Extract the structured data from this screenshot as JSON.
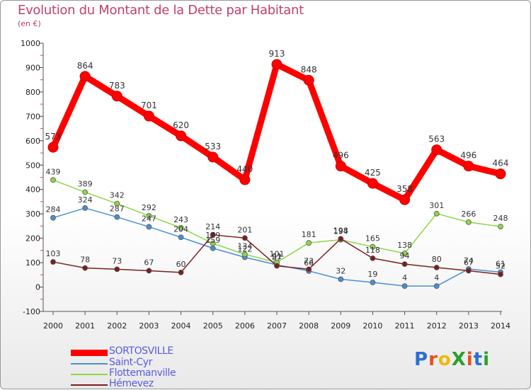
{
  "title": "Evolution du Montant de la Dette par Habitant",
  "subtitle": "(en €)",
  "logo": {
    "text": "ProXiti",
    "colors": [
      "#2a6fd6",
      "#e8501a",
      "#f0b800",
      "#2aa02a",
      "#e8501a",
      "#2a6fd6",
      "#2aa02a"
    ]
  },
  "chart_data": {
    "type": "line",
    "categories": [
      "2000",
      "2001",
      "2002",
      "2003",
      "2004",
      "2005",
      "2006",
      "2007",
      "2008",
      "2009",
      "2010",
      "2011",
      "2012",
      "2013",
      "2014"
    ],
    "ylim": [
      -100,
      1000
    ],
    "yticks": [
      -100,
      0,
      100,
      200,
      300,
      400,
      500,
      600,
      700,
      800,
      900,
      1000
    ],
    "grid": false,
    "legend_position": "bottom-left",
    "series": [
      {
        "name": "SORTOSVILLE",
        "color": "#ff0000",
        "stroke": 9,
        "marker": 7,
        "labelColor": "#333333",
        "values": [
          573,
          864,
          783,
          701,
          620,
          533,
          440,
          913,
          848,
          496,
          425,
          358,
          563,
          496,
          464
        ],
        "labels": [
          "573",
          "864",
          "783",
          "701",
          "620",
          "533",
          "440",
          "913",
          "848",
          "496",
          "425",
          "358",
          "563",
          "496",
          "464"
        ]
      },
      {
        "name": "Saint-Cyr",
        "color": "#4a90d0",
        "stroke": 1.5,
        "marker": 3.5,
        "labelColor": "#333333",
        "values": [
          284,
          324,
          287,
          247,
          204,
          159,
          122,
          91,
          66,
          32,
          19,
          4,
          4,
          74,
          61
        ],
        "labels": [
          "284",
          "324",
          "287",
          "247",
          "204",
          "159",
          "122",
          "91",
          "66",
          "32",
          "19",
          "4",
          "4",
          "74",
          "61"
        ]
      },
      {
        "name": "Flottemanville",
        "color": "#8ed64a",
        "stroke": 1.5,
        "marker": 3.5,
        "labelColor": "#333333",
        "values": [
          439,
          389,
          342,
          292,
          243,
          179,
          134,
          101,
          181,
          194,
          165,
          138,
          301,
          266,
          248
        ],
        "labels": [
          "439",
          "389",
          "342",
          "292",
          "243",
          "179",
          "134",
          "101",
          "181",
          "194",
          "165",
          "138",
          "301",
          "266",
          "248"
        ]
      },
      {
        "name": "Hémevez",
        "color": "#7a1f1f",
        "stroke": 1.5,
        "marker": 3.5,
        "labelColor": "#333333",
        "values": [
          103,
          78,
          73,
          67,
          60,
          214,
          201,
          87,
          73,
          198,
          118,
          94,
          80,
          67,
          52
        ],
        "labels": [
          "103",
          "78",
          "73",
          "67",
          "60",
          "214",
          "201",
          "87",
          "73",
          "198",
          "118",
          "94",
          "80",
          "67",
          "52"
        ]
      }
    ]
  }
}
